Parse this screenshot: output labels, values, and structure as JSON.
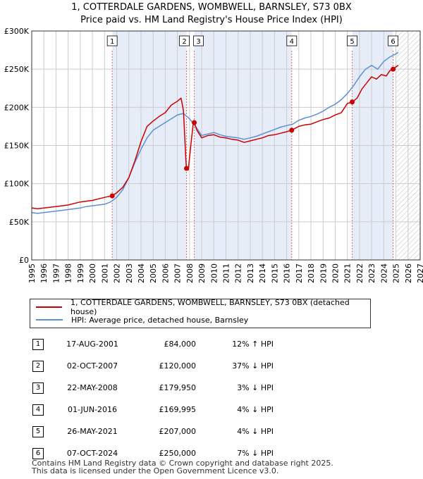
{
  "title": {
    "line1": "1, COTTERDALE GARDENS, WOMBWELL, BARNSLEY, S73 0BX",
    "line2": "Price paid vs. HM Land Registry's House Price Index (HPI)"
  },
  "legend": {
    "red_label": "1, COTTERDALE GARDENS, WOMBWELL, BARNSLEY, S73 0BX (detached house)",
    "blue_label": "HPI: Average price, detached house, Barnsley"
  },
  "colors": {
    "red": "#cc0000",
    "blue": "#5b8fd6",
    "band": "#e6edf9",
    "marker_line": "#e06666",
    "grid": "#cccccc"
  },
  "chart_data": {
    "type": "line",
    "ylim": [
      0,
      300000
    ],
    "xlim": [
      1995,
      2027
    ],
    "y_ticks": [
      0,
      50000,
      100000,
      150000,
      200000,
      250000,
      300000
    ],
    "y_tick_labels": [
      "£0",
      "£50K",
      "£100K",
      "£150K",
      "£200K",
      "£250K",
      "£300K"
    ],
    "x_ticks": [
      1995,
      1996,
      1997,
      1998,
      1999,
      2000,
      2001,
      2002,
      2003,
      2004,
      2005,
      2006,
      2007,
      2008,
      2009,
      2010,
      2011,
      2012,
      2013,
      2014,
      2015,
      2016,
      2017,
      2018,
      2019,
      2020,
      2021,
      2022,
      2023,
      2024,
      2025,
      2026,
      2027
    ],
    "x_tick_labels": [
      "1995",
      "1996",
      "1997",
      "1998",
      "1999",
      "2000",
      "2001",
      "2002",
      "2003",
      "2004",
      "2005",
      "2006",
      "2007",
      "2008",
      "2009",
      "2010",
      "2011",
      "2012",
      "2013",
      "2014",
      "2015",
      "2016",
      "2017",
      "2018",
      "2019",
      "2020",
      "2021",
      "2022",
      "2023",
      "2024",
      "2025",
      "2026",
      "2027"
    ],
    "shaded_bands": [
      [
        2001.63,
        2007.75
      ],
      [
        2008.39,
        2016.42
      ],
      [
        2021.4,
        2024.77
      ]
    ],
    "hatched_from": 2025.0,
    "series": [
      {
        "name": "1, COTTERDALE GARDENS, WOMBWELL, BARNSLEY, S73 0BX (detached house)",
        "color": "#cc0000",
        "x": [
          1995,
          1995.5,
          1996,
          1996.5,
          1997,
          1997.5,
          1998,
          1998.5,
          1999,
          1999.5,
          2000,
          2000.5,
          2001,
          2001.63,
          2002,
          2002.5,
          2003,
          2003.5,
          2004,
          2004.5,
          2005,
          2005.5,
          2006,
          2006.5,
          2007,
          2007.3,
          2007.5,
          2007.7,
          2007.75,
          2007.9,
          2008.1,
          2008.3,
          2008.39,
          2008.6,
          2009,
          2009.5,
          2010,
          2010.5,
          2011,
          2011.5,
          2012,
          2012.5,
          2013,
          2013.5,
          2014,
          2014.5,
          2015,
          2015.5,
          2016,
          2016.42,
          2017,
          2017.5,
          2018,
          2018.5,
          2019,
          2019.5,
          2020,
          2020.5,
          2021,
          2021.4,
          2021.8,
          2022.2,
          2022.6,
          2023,
          2023.4,
          2023.8,
          2024.2,
          2024.5,
          2024.77,
          2025,
          2025.2
        ],
        "y": [
          68000,
          67000,
          68000,
          69000,
          70000,
          71000,
          72000,
          74000,
          76000,
          77000,
          78000,
          80000,
          82000,
          84000,
          88000,
          95000,
          108000,
          130000,
          155000,
          175000,
          182000,
          188000,
          193000,
          203000,
          208000,
          212000,
          196000,
          130000,
          120000,
          118000,
          150000,
          178000,
          179950,
          170000,
          160000,
          163000,
          164000,
          161000,
          160000,
          158000,
          157000,
          154000,
          156000,
          158000,
          160000,
          163000,
          164000,
          166000,
          168000,
          169995,
          175000,
          177000,
          178000,
          181000,
          184000,
          186000,
          190000,
          193000,
          205000,
          207000,
          212000,
          224000,
          232000,
          240000,
          237000,
          243000,
          241000,
          248000,
          250000,
          253000,
          255000
        ]
      },
      {
        "name": "HPI: Average price, detached house, Barnsley",
        "color": "#5b8fd6",
        "x": [
          1995,
          1995.5,
          1996,
          1996.5,
          1997,
          1997.5,
          1998,
          1998.5,
          1999,
          1999.5,
          2000,
          2000.5,
          2001,
          2001.5,
          2002,
          2002.5,
          2003,
          2003.5,
          2004,
          2004.5,
          2005,
          2005.5,
          2006,
          2006.5,
          2007,
          2007.5,
          2008,
          2008.5,
          2009,
          2009.5,
          2010,
          2010.5,
          2011,
          2011.5,
          2012,
          2012.5,
          2013,
          2013.5,
          2014,
          2014.5,
          2015,
          2015.5,
          2016,
          2016.5,
          2017,
          2017.5,
          2018,
          2018.5,
          2019,
          2019.5,
          2020,
          2020.5,
          2021,
          2021.5,
          2022,
          2022.5,
          2023,
          2023.5,
          2024,
          2024.5,
          2025,
          2025.2
        ],
        "y": [
          62000,
          61000,
          62000,
          63000,
          64000,
          65000,
          66000,
          67000,
          68000,
          70000,
          71000,
          72000,
          73000,
          76000,
          82000,
          92000,
          108000,
          128000,
          145000,
          160000,
          170000,
          175000,
          180000,
          185000,
          190000,
          192000,
          185000,
          175000,
          163000,
          165000,
          167000,
          164000,
          162000,
          161000,
          160000,
          158000,
          160000,
          162000,
          165000,
          168000,
          171000,
          174000,
          176000,
          178000,
          183000,
          186000,
          188000,
          191000,
          195000,
          200000,
          204000,
          210000,
          218000,
          228000,
          240000,
          250000,
          255000,
          250000,
          260000,
          266000,
          270000,
          272000
        ]
      }
    ],
    "sales": [
      {
        "label": "1",
        "x": 2001.63,
        "y": 84000
      },
      {
        "label": "2",
        "x": 2007.75,
        "y": 120000
      },
      {
        "label": "3",
        "x": 2008.39,
        "y": 179950
      },
      {
        "label": "4",
        "x": 2016.42,
        "y": 169995
      },
      {
        "label": "5",
        "x": 2021.4,
        "y": 207000
      },
      {
        "label": "6",
        "x": 2024.77,
        "y": 250000
      }
    ]
  },
  "table": {
    "rows": [
      {
        "num": "1",
        "date": "17-AUG-2001",
        "price": "£84,000",
        "hpi": "12% ↑ HPI"
      },
      {
        "num": "2",
        "date": "02-OCT-2007",
        "price": "£120,000",
        "hpi": "37% ↓ HPI"
      },
      {
        "num": "3",
        "date": "22-MAY-2008",
        "price": "£179,950",
        "hpi": "3% ↓ HPI"
      },
      {
        "num": "4",
        "date": "01-JUN-2016",
        "price": "£169,995",
        "hpi": "4% ↓ HPI"
      },
      {
        "num": "5",
        "date": "26-MAY-2021",
        "price": "£207,000",
        "hpi": "4% ↓ HPI"
      },
      {
        "num": "6",
        "date": "07-OCT-2024",
        "price": "£250,000",
        "hpi": "7% ↓ HPI"
      }
    ]
  },
  "footer": {
    "line1": "Contains HM Land Registry data © Crown copyright and database right 2025.",
    "line2": "This data is licensed under the Open Government Licence v3.0."
  }
}
